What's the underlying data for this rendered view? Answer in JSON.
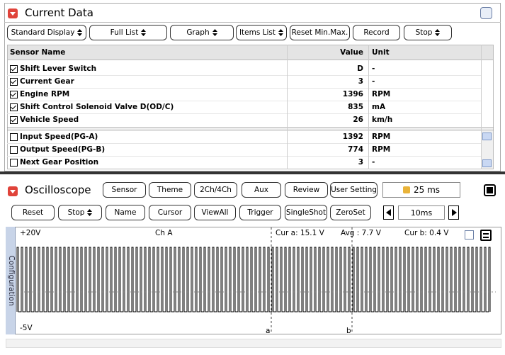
{
  "current_data": {
    "title": "Current Data",
    "toolbar": [
      {
        "label": "Standard Display",
        "dropdown": true
      },
      {
        "label": "Full List",
        "dropdown": true
      },
      {
        "label": "Graph",
        "dropdown": true
      },
      {
        "label": "Items List",
        "dropdown": true
      },
      {
        "label": "Reset Min.Max.",
        "dropdown": false
      },
      {
        "label": "Record",
        "dropdown": false
      },
      {
        "label": "Stop",
        "dropdown": true
      }
    ],
    "table": {
      "columns": [
        "Sensor Name",
        "Value",
        "Unit"
      ],
      "rows": [
        {
          "checked": true,
          "name": "Shift Lever Switch",
          "value": "D",
          "unit": "-"
        },
        {
          "checked": true,
          "name": "Current Gear",
          "value": 3,
          "unit": "-"
        },
        {
          "checked": true,
          "name": "Engine RPM",
          "value": 1396,
          "unit": "RPM"
        },
        {
          "checked": true,
          "name": "Shift Control Solenoid Valve D(OD/C)",
          "value": 835,
          "unit": "mA"
        },
        {
          "checked": true,
          "name": "Vehicle Speed",
          "value": 26,
          "unit": "km/h"
        },
        {
          "checked": false,
          "name": "Input Speed(PG-A)",
          "value": 1392,
          "unit": "RPM"
        },
        {
          "checked": false,
          "name": "Output Speed(PG-B)",
          "value": 774,
          "unit": "RPM"
        },
        {
          "checked": false,
          "name": "Next Gear Position",
          "value": 3,
          "unit": "-"
        }
      ]
    }
  },
  "oscilloscope": {
    "title": "Oscilloscope",
    "buttons": [
      "Sensor",
      "Theme",
      "2Ch/4Ch",
      "Aux",
      "Review",
      "User Setting"
    ],
    "timebase": "25 ms",
    "controls": [
      {
        "label": "Reset",
        "dropdown": false
      },
      {
        "label": "Stop",
        "dropdown": true
      },
      {
        "label": "Name",
        "dropdown": false
      },
      {
        "label": "Cursor",
        "dropdown": false
      },
      {
        "label": "ViewAll",
        "dropdown": false
      },
      {
        "label": "Trigger",
        "dropdown": false
      },
      {
        "label": "SingleShot",
        "dropdown": false
      },
      {
        "label": "ZeroSet",
        "dropdown": false
      }
    ],
    "time_div": "10ms",
    "side_tab": "Configuration",
    "scope": {
      "y_max": "+20V",
      "y_min": "-5V",
      "channel": "Ch A",
      "cursor_a": "Cur a: 15.1 V",
      "average": "Avg : 7.7 V",
      "cursor_b": "Cur b: 0.4 V",
      "marker_a": "a",
      "marker_b": "b"
    }
  }
}
